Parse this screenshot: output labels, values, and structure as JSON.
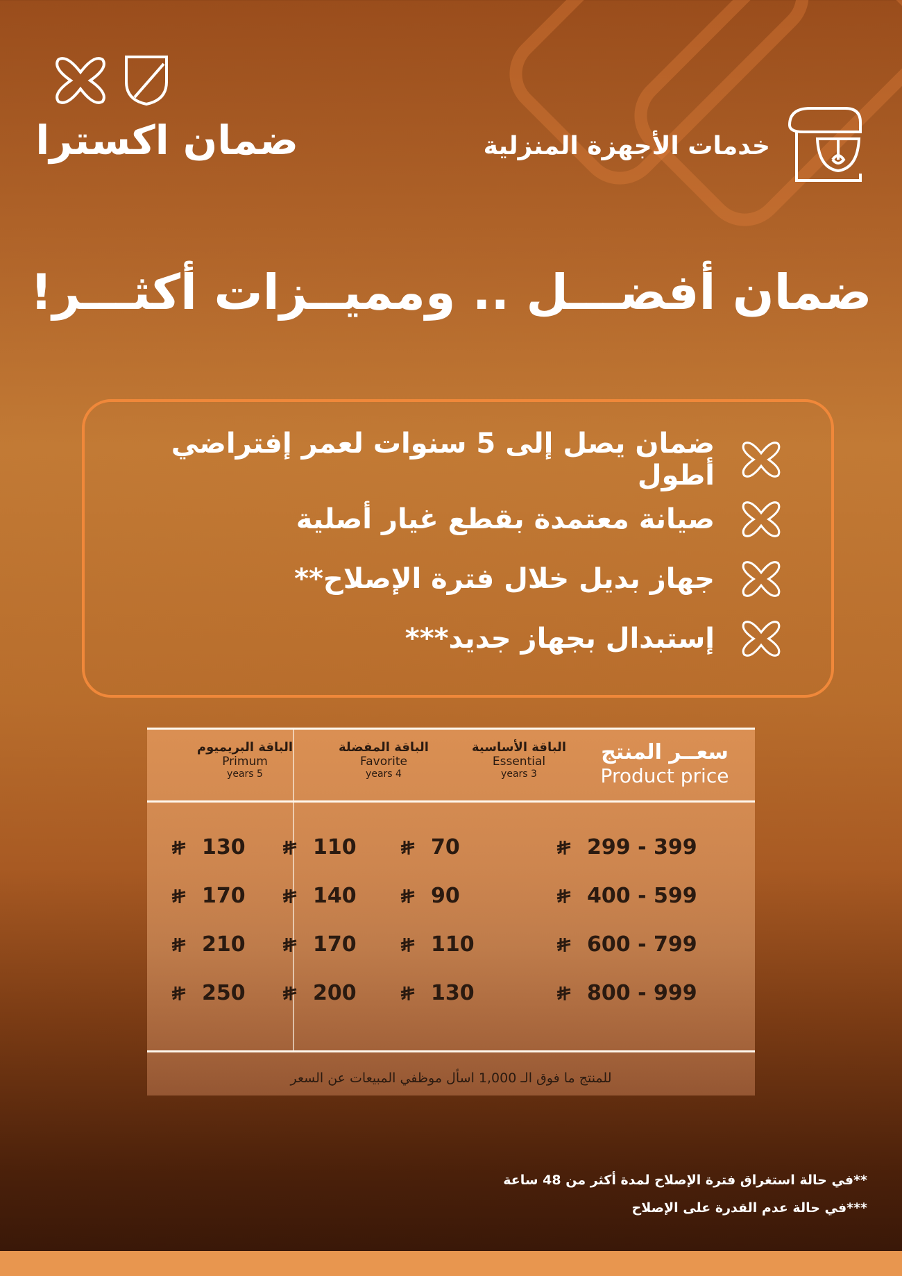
{
  "brand": {
    "name": "ضمان اكسترا",
    "logo_icons": [
      "x-mark-icon",
      "shield-icon"
    ]
  },
  "service": {
    "title": "خدمات الأجهزة المنزلية",
    "icon": "stand-mixer-icon"
  },
  "headline": "ضمان أفضـــل .. ومميــزات أكثـــر!",
  "features": [
    "ضمان يصل إلى 5 سنوات لعمر إفتراضي أطول",
    "صيانة معتمدة بقطع غيار أصلية",
    "جهاز بديل خلال فترة الإصلاح**",
    "إستبدال بجهاز جديد***"
  ],
  "table": {
    "currency_icon": "saudi-riyal-icon",
    "headers": [
      {
        "ar": "سعــر المنتج",
        "en": "Product price"
      },
      {
        "ar": "الباقة الأساسية",
        "en": "Essential",
        "years": "3 years"
      },
      {
        "ar": "الباقة المفضلة",
        "en": "Favorite",
        "years": "4 years"
      },
      {
        "ar": "الباقة البريميوم",
        "en": "Primum",
        "years": "5 years"
      }
    ],
    "rows": [
      {
        "price": "299 - 399",
        "essential": "70",
        "favorite": "110",
        "premium": "130"
      },
      {
        "price": "400 - 599",
        "essential": "90",
        "favorite": "140",
        "premium": "170"
      },
      {
        "price": "600 - 799",
        "essential": "110",
        "favorite": "170",
        "premium": "210"
      },
      {
        "price": "800 - 999",
        "essential": "130",
        "favorite": "200",
        "premium": "250"
      }
    ],
    "note": "للمنتج ما فوق الـ 1,000 اسأل موظفي المبيعات عن السعر"
  },
  "notes": [
    "**في حالة استغراق فترة الإصلاح لمدة أكثر من 48 ساعة",
    "***في حالة عدم القدرة على الإصلاح"
  ],
  "colors": {
    "accent": "#f0883a",
    "band": "#e8964f"
  }
}
